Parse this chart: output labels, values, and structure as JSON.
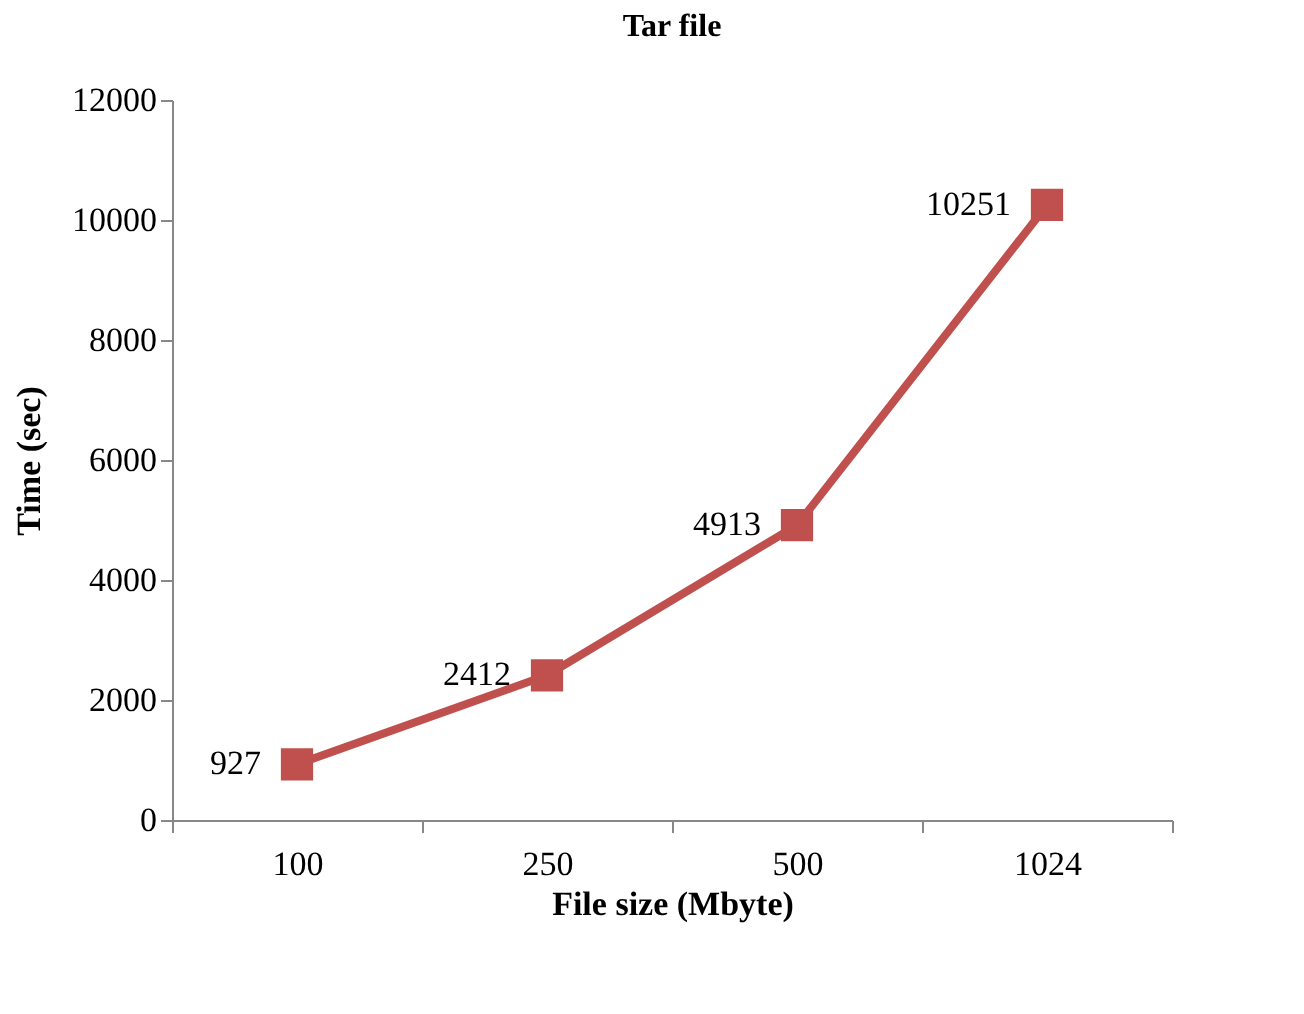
{
  "chart_data": {
    "type": "line",
    "title": "Tar file",
    "xlabel": "File size (Mbyte)",
    "ylabel": "Time  (sec)",
    "categories": [
      "100",
      "250",
      "500",
      "1024"
    ],
    "series": [
      {
        "color": "#c0504d",
        "values": [
          927,
          2412,
          4913,
          10251
        ]
      }
    ],
    "ylim": [
      0,
      12000
    ],
    "yticks": [
      0,
      2000,
      4000,
      6000,
      8000,
      10000,
      12000
    ],
    "grid": false,
    "legend": false,
    "marker": "square",
    "line_style": "solid",
    "data_labels": true
  }
}
